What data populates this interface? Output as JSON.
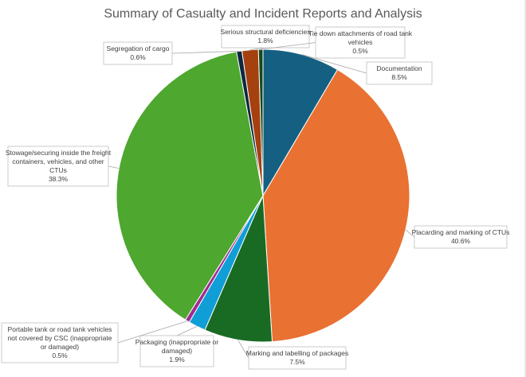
{
  "chart_data": {
    "type": "pie",
    "title": "Summary of Casualty and Incident Reports and Analysis",
    "slices": [
      {
        "label": [
          "Documentation"
        ],
        "pct_text": "8.5%",
        "value": 8.5,
        "color": "#156082"
      },
      {
        "label": [
          "Placarding and marking of CTUs"
        ],
        "pct_text": "40.6%",
        "value": 40.6,
        "color": "#E97132"
      },
      {
        "label": [
          "Marking and labelling of packages"
        ],
        "pct_text": "7.5%",
        "value": 7.5,
        "color": "#196B24"
      },
      {
        "label": [
          "Packaging (inappropriate or",
          "damaged)"
        ],
        "pct_text": "1.9%",
        "value": 1.9,
        "color": "#0F9ED5"
      },
      {
        "label": [
          "Portable tank or road tank vehicles",
          "not covered by CSC (inappropriate",
          "or damaged)"
        ],
        "pct_text": "0.5%",
        "value": 0.5,
        "color": "#A02B93"
      },
      {
        "label": [
          "Stowage/securing inside the freight",
          "containers, vehicles, and other",
          "CTUs"
        ],
        "pct_text": "38.3%",
        "value": 38.3,
        "color": "#4EA72E"
      },
      {
        "label": [
          "Segregation of cargo"
        ],
        "pct_text": "0.6%",
        "value": 0.6,
        "color": "#0E2841"
      },
      {
        "label": [
          "Serious structural deficiencies"
        ],
        "pct_text": "1.8%",
        "value": 1.8,
        "color": "#A5400F"
      },
      {
        "label": [
          "Tie down attachments of road tank",
          "vehicles"
        ],
        "pct_text": "0.5%",
        "value": 0.5,
        "color": "#154A1B"
      }
    ]
  }
}
